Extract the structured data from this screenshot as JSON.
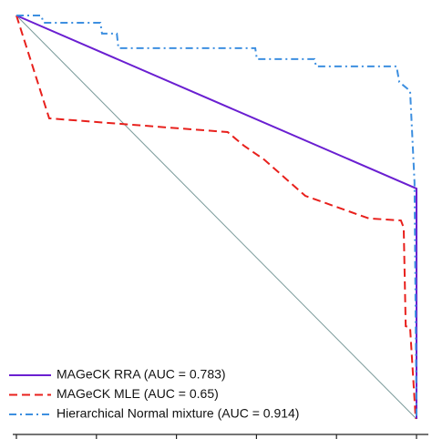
{
  "chart_data": {
    "type": "line",
    "xlim": [
      0,
      1
    ],
    "ylim": [
      0,
      1
    ],
    "xticks": [
      0,
      0.2,
      0.4,
      0.6,
      0.8,
      1
    ],
    "legend": "bottom-left",
    "series": [
      {
        "name": "MAGeCK RRA (AUC = 0.783)",
        "color": "#6a1fd1",
        "dash": "solid",
        "x": [
          0,
          1,
          1
        ],
        "values": [
          1,
          0.571,
          0
        ]
      },
      {
        "name": "MAGeCK MLE (AUC = 0.65)",
        "color": "#e8201c",
        "dash": "dashed",
        "x": [
          0,
          0.082,
          0.528,
          0.569,
          0.619,
          0.722,
          0.881,
          0.961,
          0.968,
          0.973,
          0.984,
          0.998
        ],
        "values": [
          1,
          0.745,
          0.711,
          0.677,
          0.643,
          0.553,
          0.497,
          0.492,
          0.474,
          0.23,
          0.226,
          0
        ]
      },
      {
        "name": "Hierarchical Normal mixture (AUC = 0.914)",
        "color": "#3d8fe0",
        "dash": "dashdot",
        "x": [
          0,
          0.062,
          0.068,
          0.21,
          0.214,
          0.251,
          0.255,
          0.597,
          0.601,
          0.745,
          0.749,
          0.95,
          0.957,
          0.984,
          0.995,
          1
        ],
        "values": [
          1,
          1,
          0.982,
          0.982,
          0.955,
          0.955,
          0.919,
          0.919,
          0.892,
          0.892,
          0.874,
          0.874,
          0.835,
          0.813,
          0.587,
          0
        ]
      }
    ]
  }
}
